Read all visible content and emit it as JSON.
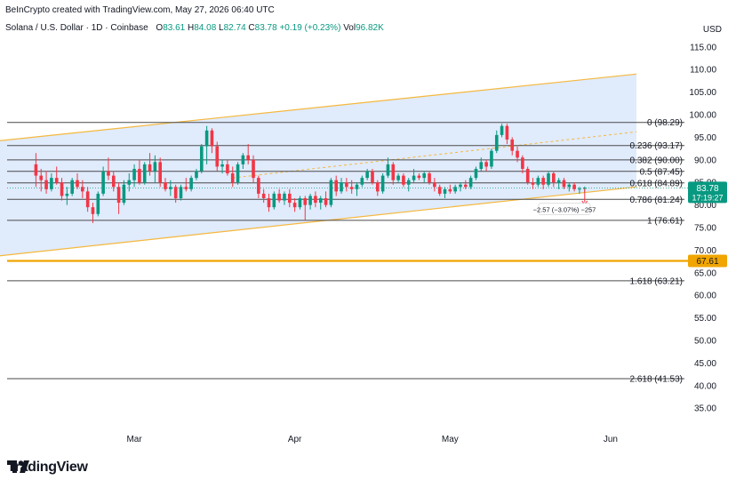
{
  "header": {
    "attribution": "BeInCrypto created with TradingView.com, May 27, 2026 06:40 UTC"
  },
  "symbol": {
    "title": "Solana / U.S. Dollar · 1D · Coinbase",
    "o_label": "O",
    "o_value": "83.61",
    "h_label": "H",
    "h_value": "84.08",
    "l_label": "L",
    "l_value": "82.74",
    "c_label": "C",
    "c_value": "83.78",
    "change": "+0.19 (+0.23%)",
    "vol_label": "Vol",
    "vol_value": "96.82K"
  },
  "brand": {
    "name": "TradingView",
    "logo_icon": "tradingview-logo-icon"
  },
  "price_tags": {
    "current_price": "83.78",
    "countdown": "17:19:27",
    "support_level": "67.61"
  },
  "measure_label": "−2.57 (−3.07%) −257",
  "colors": {
    "up": "#089981",
    "down": "#f23645",
    "channel_fill": "#dbe8fb",
    "channel_line": "#f5b83d",
    "support": "#f0a500",
    "fib": "#4a4a4a"
  },
  "chart_data": {
    "type": "candlestick",
    "title": "",
    "y_axis": {
      "label": "USD",
      "range": [
        30.5,
        119.5
      ],
      "ticks": [
        115,
        110,
        105,
        100,
        95,
        90,
        85,
        80,
        75,
        70,
        65,
        60,
        55,
        50,
        45,
        40,
        35
      ]
    },
    "x_axis": {
      "ticks": [
        {
          "label": "Mar",
          "date": "2026-03-01"
        },
        {
          "label": "Apr",
          "date": "2026-04-01"
        },
        {
          "label": "May",
          "date": "2026-05-01"
        },
        {
          "label": "Jun",
          "date": "2026-06-01"
        }
      ]
    },
    "fib_levels": [
      {
        "ratio": "0",
        "label": "0 (98.29)",
        "value": 98.29
      },
      {
        "ratio": "0.236",
        "label": "0.236 (93.17)",
        "value": 93.17
      },
      {
        "ratio": "0.382",
        "label": "0.382 (90.00)",
        "value": 90.0
      },
      {
        "ratio": "0.5",
        "label": "0.5 (87.45)",
        "value": 87.45
      },
      {
        "ratio": "0.618",
        "label": "0.618 (84.89)",
        "value": 84.89
      },
      {
        "ratio": "0.786",
        "label": "0.786 (81.24)",
        "value": 81.24
      },
      {
        "ratio": "1",
        "label": "1 (76.61)",
        "value": 76.61
      },
      {
        "ratio": "1.618",
        "label": "1.618 (63.21)",
        "value": 63.21
      },
      {
        "ratio": "2.618",
        "label": "2.618 (41.53)",
        "value": 41.53
      }
    ],
    "support_line": 67.61,
    "channel": {
      "lower": [
        {
          "date": "2026-02-01",
          "value": 68.5
        },
        {
          "date": "2026-06-06",
          "value": 84.0
        }
      ],
      "upper": [
        {
          "date": "2026-02-01",
          "value": 94.0
        },
        {
          "date": "2026-06-06",
          "value": 109.0
        }
      ],
      "mid": [
        {
          "date": "2026-03-20",
          "value": 86.0
        },
        {
          "date": "2026-06-06",
          "value": 96.2
        }
      ]
    },
    "candles": [
      {
        "date": "2026-02-10",
        "open": 89.0,
        "high": 91.5,
        "low": 84.0,
        "close": 86.5
      },
      {
        "date": "2026-02-11",
        "open": 86.5,
        "high": 88.0,
        "low": 83.0,
        "close": 85.5
      },
      {
        "date": "2026-02-12",
        "open": 85.5,
        "high": 87.5,
        "low": 82.5,
        "close": 83.5
      },
      {
        "date": "2026-02-13",
        "open": 83.5,
        "high": 87.0,
        "low": 83.0,
        "close": 86.0
      },
      {
        "date": "2026-02-14",
        "open": 86.0,
        "high": 88.5,
        "low": 84.5,
        "close": 85.0
      },
      {
        "date": "2026-02-15",
        "open": 85.0,
        "high": 86.0,
        "low": 81.0,
        "close": 82.0
      },
      {
        "date": "2026-02-16",
        "open": 82.0,
        "high": 84.0,
        "low": 80.0,
        "close": 82.5
      },
      {
        "date": "2026-02-17",
        "open": 82.5,
        "high": 86.0,
        "low": 82.0,
        "close": 85.5
      },
      {
        "date": "2026-02-18",
        "open": 85.5,
        "high": 87.0,
        "low": 83.5,
        "close": 84.0
      },
      {
        "date": "2026-02-19",
        "open": 84.0,
        "high": 85.5,
        "low": 81.5,
        "close": 83.0
      },
      {
        "date": "2026-02-20",
        "open": 83.0,
        "high": 84.0,
        "low": 78.5,
        "close": 79.5
      },
      {
        "date": "2026-02-21",
        "open": 79.5,
        "high": 80.5,
        "low": 76.0,
        "close": 78.0
      },
      {
        "date": "2026-02-22",
        "open": 78.0,
        "high": 83.0,
        "low": 77.5,
        "close": 82.5
      },
      {
        "date": "2026-02-23",
        "open": 82.5,
        "high": 88.5,
        "low": 82.0,
        "close": 87.5
      },
      {
        "date": "2026-02-24",
        "open": 87.5,
        "high": 90.5,
        "low": 85.5,
        "close": 86.5
      },
      {
        "date": "2026-02-25",
        "open": 86.5,
        "high": 87.5,
        "low": 83.0,
        "close": 84.0
      },
      {
        "date": "2026-02-26",
        "open": 84.0,
        "high": 85.0,
        "low": 78.0,
        "close": 80.5
      },
      {
        "date": "2026-02-27",
        "open": 80.5,
        "high": 85.5,
        "low": 80.0,
        "close": 84.5
      },
      {
        "date": "2026-02-28",
        "open": 84.5,
        "high": 87.0,
        "low": 83.0,
        "close": 85.5
      },
      {
        "date": "2026-03-01",
        "open": 85.5,
        "high": 89.0,
        "low": 84.0,
        "close": 88.0
      },
      {
        "date": "2026-03-02",
        "open": 88.0,
        "high": 90.0,
        "low": 84.5,
        "close": 85.0
      },
      {
        "date": "2026-03-03",
        "open": 85.0,
        "high": 89.5,
        "low": 84.5,
        "close": 89.0
      },
      {
        "date": "2026-03-04",
        "open": 89.0,
        "high": 91.5,
        "low": 86.5,
        "close": 87.5
      },
      {
        "date": "2026-03-05",
        "open": 87.5,
        "high": 91.0,
        "low": 85.0,
        "close": 89.5
      },
      {
        "date": "2026-03-06",
        "open": 89.5,
        "high": 90.5,
        "low": 84.0,
        "close": 85.0
      },
      {
        "date": "2026-03-07",
        "open": 85.0,
        "high": 86.0,
        "low": 83.0,
        "close": 83.5
      },
      {
        "date": "2026-03-08",
        "open": 83.5,
        "high": 85.5,
        "low": 82.0,
        "close": 84.0
      },
      {
        "date": "2026-03-09",
        "open": 84.0,
        "high": 84.5,
        "low": 80.5,
        "close": 81.5
      },
      {
        "date": "2026-03-10",
        "open": 81.5,
        "high": 84.5,
        "low": 81.0,
        "close": 84.0
      },
      {
        "date": "2026-03-11",
        "open": 84.0,
        "high": 86.0,
        "low": 83.0,
        "close": 83.5
      },
      {
        "date": "2026-03-12",
        "open": 83.5,
        "high": 86.5,
        "low": 83.0,
        "close": 86.0
      },
      {
        "date": "2026-03-13",
        "open": 86.0,
        "high": 88.0,
        "low": 85.5,
        "close": 87.5
      },
      {
        "date": "2026-03-14",
        "open": 87.5,
        "high": 93.5,
        "low": 87.0,
        "close": 93.0
      },
      {
        "date": "2026-03-15",
        "open": 93.0,
        "high": 97.5,
        "low": 89.0,
        "close": 96.5
      },
      {
        "date": "2026-03-16",
        "open": 96.5,
        "high": 97.0,
        "low": 91.5,
        "close": 93.0
      },
      {
        "date": "2026-03-17",
        "open": 93.0,
        "high": 94.0,
        "low": 87.5,
        "close": 88.5
      },
      {
        "date": "2026-03-18",
        "open": 88.5,
        "high": 90.0,
        "low": 87.0,
        "close": 89.0
      },
      {
        "date": "2026-03-19",
        "open": 89.0,
        "high": 90.0,
        "low": 86.5,
        "close": 87.0
      },
      {
        "date": "2026-03-20",
        "open": 87.0,
        "high": 88.5,
        "low": 84.0,
        "close": 85.0
      },
      {
        "date": "2026-03-21",
        "open": 85.0,
        "high": 89.5,
        "low": 84.5,
        "close": 89.0
      },
      {
        "date": "2026-03-22",
        "open": 89.0,
        "high": 91.5,
        "low": 88.0,
        "close": 91.0
      },
      {
        "date": "2026-03-23",
        "open": 91.0,
        "high": 93.5,
        "low": 89.0,
        "close": 90.0
      },
      {
        "date": "2026-03-24",
        "open": 90.0,
        "high": 91.0,
        "low": 85.0,
        "close": 86.0
      },
      {
        "date": "2026-03-25",
        "open": 86.0,
        "high": 86.5,
        "low": 81.5,
        "close": 82.5
      },
      {
        "date": "2026-03-26",
        "open": 82.5,
        "high": 83.5,
        "low": 80.5,
        "close": 81.5
      },
      {
        "date": "2026-03-27",
        "open": 81.5,
        "high": 82.5,
        "low": 78.5,
        "close": 79.5
      },
      {
        "date": "2026-03-28",
        "open": 79.5,
        "high": 83.0,
        "low": 79.0,
        "close": 82.5
      },
      {
        "date": "2026-03-29",
        "open": 82.5,
        "high": 83.5,
        "low": 80.5,
        "close": 81.0
      },
      {
        "date": "2026-03-30",
        "open": 81.0,
        "high": 83.0,
        "low": 80.0,
        "close": 82.5
      },
      {
        "date": "2026-03-31",
        "open": 82.5,
        "high": 83.5,
        "low": 79.5,
        "close": 80.5
      },
      {
        "date": "2026-04-01",
        "open": 80.5,
        "high": 81.5,
        "low": 78.5,
        "close": 79.5
      },
      {
        "date": "2026-04-02",
        "open": 79.5,
        "high": 82.0,
        "low": 79.0,
        "close": 81.5
      },
      {
        "date": "2026-04-03",
        "open": 81.5,
        "high": 82.0,
        "low": 76.5,
        "close": 80.0
      },
      {
        "date": "2026-04-04",
        "open": 80.0,
        "high": 82.5,
        "low": 79.0,
        "close": 82.0
      },
      {
        "date": "2026-04-05",
        "open": 82.0,
        "high": 83.0,
        "low": 79.5,
        "close": 80.5
      },
      {
        "date": "2026-04-06",
        "open": 80.5,
        "high": 82.0,
        "low": 79.0,
        "close": 81.5
      },
      {
        "date": "2026-04-07",
        "open": 81.5,
        "high": 83.0,
        "low": 79.5,
        "close": 80.0
      },
      {
        "date": "2026-04-08",
        "open": 80.0,
        "high": 86.0,
        "low": 79.5,
        "close": 85.5
      },
      {
        "date": "2026-04-09",
        "open": 85.5,
        "high": 86.5,
        "low": 82.0,
        "close": 83.0
      },
      {
        "date": "2026-04-10",
        "open": 83.0,
        "high": 86.0,
        "low": 82.5,
        "close": 85.0
      },
      {
        "date": "2026-04-11",
        "open": 85.0,
        "high": 86.0,
        "low": 83.0,
        "close": 84.0
      },
      {
        "date": "2026-04-12",
        "open": 84.0,
        "high": 85.5,
        "low": 82.5,
        "close": 83.5
      },
      {
        "date": "2026-04-13",
        "open": 83.5,
        "high": 85.0,
        "low": 82.0,
        "close": 84.5
      },
      {
        "date": "2026-04-14",
        "open": 84.5,
        "high": 86.5,
        "low": 84.0,
        "close": 86.0
      },
      {
        "date": "2026-04-15",
        "open": 86.0,
        "high": 88.0,
        "low": 85.5,
        "close": 87.5
      },
      {
        "date": "2026-04-16",
        "open": 87.5,
        "high": 88.0,
        "low": 84.5,
        "close": 85.0
      },
      {
        "date": "2026-04-17",
        "open": 85.0,
        "high": 85.5,
        "low": 82.0,
        "close": 83.0
      },
      {
        "date": "2026-04-18",
        "open": 83.0,
        "high": 87.0,
        "low": 82.5,
        "close": 86.5
      },
      {
        "date": "2026-04-19",
        "open": 86.5,
        "high": 90.5,
        "low": 86.0,
        "close": 89.0
      },
      {
        "date": "2026-04-20",
        "open": 89.0,
        "high": 89.5,
        "low": 84.5,
        "close": 85.5
      },
      {
        "date": "2026-04-21",
        "open": 85.5,
        "high": 87.0,
        "low": 85.0,
        "close": 86.5
      },
      {
        "date": "2026-04-22",
        "open": 86.5,
        "high": 87.0,
        "low": 84.0,
        "close": 84.5
      },
      {
        "date": "2026-04-23",
        "open": 84.5,
        "high": 86.0,
        "low": 83.0,
        "close": 85.5
      },
      {
        "date": "2026-04-24",
        "open": 85.5,
        "high": 88.0,
        "low": 85.0,
        "close": 86.5
      },
      {
        "date": "2026-04-25",
        "open": 86.5,
        "high": 87.0,
        "low": 85.5,
        "close": 86.0
      },
      {
        "date": "2026-04-26",
        "open": 86.0,
        "high": 87.5,
        "low": 85.0,
        "close": 87.0
      },
      {
        "date": "2026-04-27",
        "open": 87.0,
        "high": 87.5,
        "low": 84.5,
        "close": 85.0
      },
      {
        "date": "2026-04-28",
        "open": 85.0,
        "high": 86.0,
        "low": 83.0,
        "close": 84.0
      },
      {
        "date": "2026-04-29",
        "open": 84.0,
        "high": 84.5,
        "low": 82.0,
        "close": 82.5
      },
      {
        "date": "2026-04-30",
        "open": 82.5,
        "high": 84.0,
        "low": 81.5,
        "close": 83.5
      },
      {
        "date": "2026-05-01",
        "open": 83.5,
        "high": 84.5,
        "low": 82.5,
        "close": 83.0
      },
      {
        "date": "2026-05-02",
        "open": 83.0,
        "high": 84.5,
        "low": 82.5,
        "close": 84.0
      },
      {
        "date": "2026-05-03",
        "open": 84.0,
        "high": 85.0,
        "low": 83.0,
        "close": 84.5
      },
      {
        "date": "2026-05-04",
        "open": 84.5,
        "high": 85.5,
        "low": 83.5,
        "close": 84.0
      },
      {
        "date": "2026-05-05",
        "open": 84.0,
        "high": 86.5,
        "low": 83.5,
        "close": 86.0
      },
      {
        "date": "2026-05-06",
        "open": 86.0,
        "high": 88.5,
        "low": 85.5,
        "close": 88.0
      },
      {
        "date": "2026-05-07",
        "open": 88.0,
        "high": 90.5,
        "low": 87.5,
        "close": 89.5
      },
      {
        "date": "2026-05-08",
        "open": 89.5,
        "high": 90.0,
        "low": 87.5,
        "close": 88.5
      },
      {
        "date": "2026-05-09",
        "open": 88.5,
        "high": 92.5,
        "low": 88.0,
        "close": 92.0
      },
      {
        "date": "2026-05-10",
        "open": 92.0,
        "high": 96.5,
        "low": 91.5,
        "close": 95.5
      },
      {
        "date": "2026-05-11",
        "open": 95.5,
        "high": 98.0,
        "low": 95.0,
        "close": 97.5
      },
      {
        "date": "2026-05-12",
        "open": 97.5,
        "high": 98.0,
        "low": 93.5,
        "close": 94.5
      },
      {
        "date": "2026-05-13",
        "open": 94.5,
        "high": 95.0,
        "low": 91.0,
        "close": 92.0
      },
      {
        "date": "2026-05-14",
        "open": 92.0,
        "high": 93.0,
        "low": 89.5,
        "close": 90.5
      },
      {
        "date": "2026-05-15",
        "open": 90.5,
        "high": 91.0,
        "low": 87.0,
        "close": 88.0
      },
      {
        "date": "2026-05-16",
        "open": 88.0,
        "high": 88.5,
        "low": 84.5,
        "close": 85.0
      },
      {
        "date": "2026-05-17",
        "open": 85.0,
        "high": 86.0,
        "low": 83.5,
        "close": 84.5
      },
      {
        "date": "2026-05-18",
        "open": 84.5,
        "high": 86.5,
        "low": 84.0,
        "close": 86.0
      },
      {
        "date": "2026-05-19",
        "open": 86.0,
        "high": 86.5,
        "low": 83.5,
        "close": 84.5
      },
      {
        "date": "2026-05-20",
        "open": 84.5,
        "high": 87.5,
        "low": 84.0,
        "close": 87.0
      },
      {
        "date": "2026-05-21",
        "open": 87.0,
        "high": 87.5,
        "low": 84.0,
        "close": 85.0
      },
      {
        "date": "2026-05-22",
        "open": 85.0,
        "high": 86.0,
        "low": 83.5,
        "close": 85.5
      },
      {
        "date": "2026-05-23",
        "open": 85.5,
        "high": 86.0,
        "low": 83.5,
        "close": 84.0
      },
      {
        "date": "2026-05-24",
        "open": 84.0,
        "high": 85.0,
        "low": 83.0,
        "close": 84.5
      },
      {
        "date": "2026-05-25",
        "open": 84.5,
        "high": 85.0,
        "low": 83.0,
        "close": 83.5
      },
      {
        "date": "2026-05-26",
        "open": 83.5,
        "high": 84.0,
        "low": 82.5,
        "close": 83.6
      },
      {
        "date": "2026-05-27",
        "open": 83.61,
        "high": 84.08,
        "low": 82.74,
        "close": 83.78
      }
    ]
  }
}
